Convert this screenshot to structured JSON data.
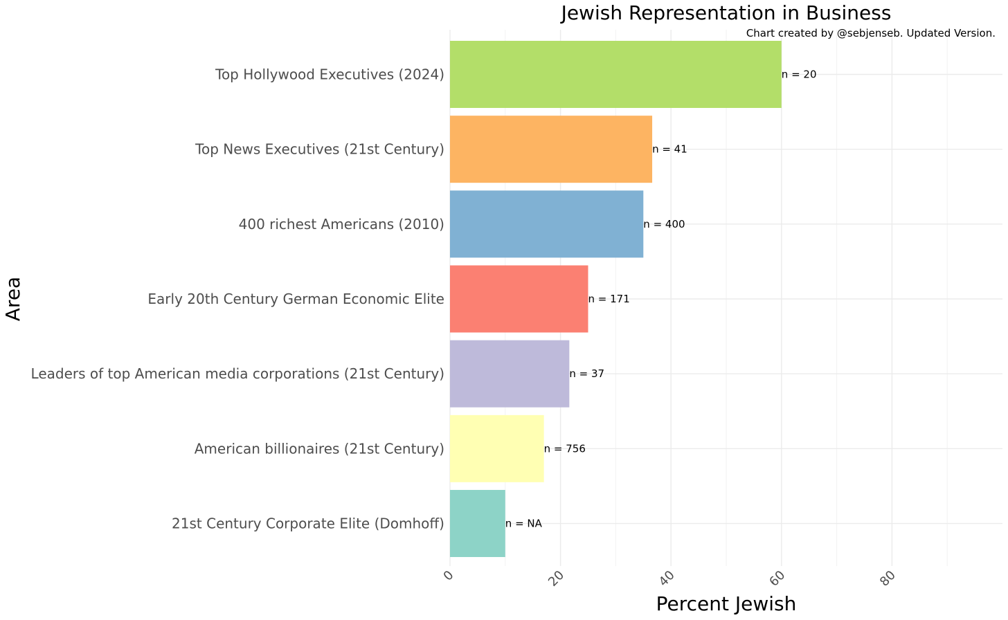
{
  "chart_data": {
    "type": "bar",
    "orientation": "horizontal",
    "title": "Jewish Representation in Business",
    "caption": "Chart created by @sebjenseb. Updated Version.",
    "xlabel": "Percent Jewish",
    "ylabel": "Area",
    "xlim": [
      0,
      100
    ],
    "x_ticks": [
      "0",
      "20",
      "40",
      "60",
      "80"
    ],
    "x_tick_values": [
      0,
      20,
      40,
      60,
      80
    ],
    "grid": true,
    "legend": "none",
    "categories": [
      "Top Hollywood Executives (2024)",
      "Top News Executives (21st Century)",
      "400 richest Americans (2010)",
      "Early 20th Century German Economic Elite",
      "Leaders of top American media corporations (21st Century)",
      "American billionaires (21st Century)",
      "21st Century Corporate Elite (Domhoff)"
    ],
    "values": [
      60,
      36.6,
      35,
      25,
      21.6,
      17,
      10
    ],
    "n_labels": [
      "n = 20",
      "n = 41",
      "n = 400",
      "n = 171",
      "n = 37",
      "n = 756",
      "n = NA"
    ],
    "colors": [
      "#b3de69",
      "#fdb462",
      "#80b1d3",
      "#fb8072",
      "#bebada",
      "#ffffb3",
      "#8dd3c7"
    ]
  }
}
